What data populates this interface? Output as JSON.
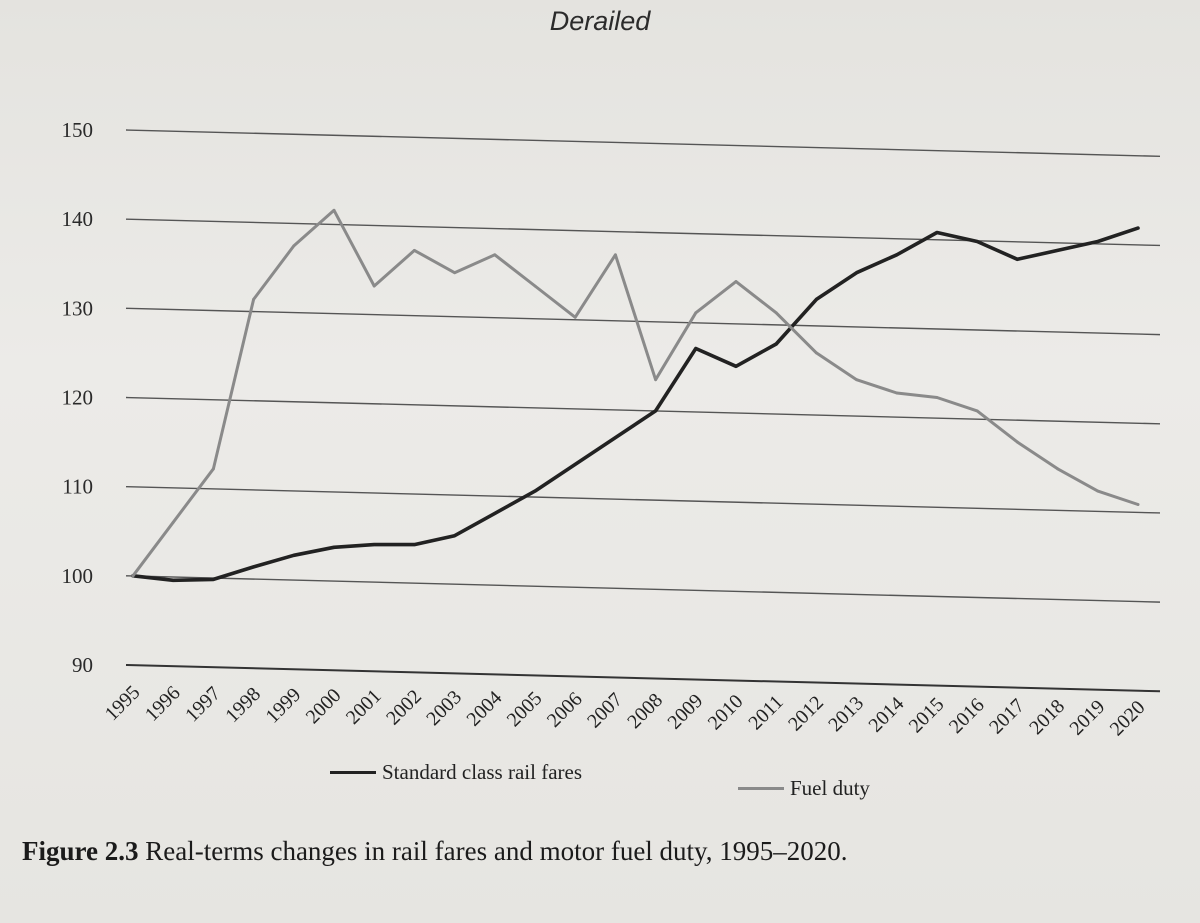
{
  "page": {
    "running_head": "Derailed"
  },
  "caption": {
    "figure_label": "Figure 2.3",
    "text": "Real-terms changes in rail fares and motor fuel duty, 1995–2020."
  },
  "chart_data": {
    "type": "line",
    "title": "",
    "xlabel": "",
    "ylabel": "",
    "ylim": [
      90,
      150
    ],
    "yticks": [
      90,
      100,
      110,
      120,
      130,
      140,
      150
    ],
    "grid": true,
    "legend_position": "bottom",
    "x": [
      "1995",
      "1996",
      "1997",
      "1998",
      "1999",
      "2000",
      "2001",
      "2002",
      "2003",
      "2004",
      "2005",
      "2006",
      "2007",
      "2008",
      "2009",
      "2010",
      "2011",
      "2012",
      "2013",
      "2014",
      "2015",
      "2016",
      "2017",
      "2018",
      "2019",
      "2020"
    ],
    "series": [
      {
        "name": "Standard class rail fares",
        "color": "#222222",
        "values": [
          100,
          99.5,
          99.6,
          101,
          102.3,
          103.2,
          103.5,
          103.5,
          104.5,
          107,
          109.5,
          112.5,
          115.5,
          118.5,
          125.5,
          123.5,
          126,
          131,
          134,
          136,
          138.5,
          137.5,
          135.5,
          136.5,
          137.5,
          139
        ]
      },
      {
        "name": "Fuel duty",
        "color": "#8a8a8a",
        "values": [
          100,
          106,
          112,
          131,
          137,
          141,
          132.5,
          136.5,
          134,
          136,
          132.5,
          129,
          136,
          122,
          129.5,
          133,
          129.5,
          125,
          122,
          120.5,
          120,
          118.5,
          115,
          112,
          109.5,
          108
        ]
      }
    ]
  }
}
